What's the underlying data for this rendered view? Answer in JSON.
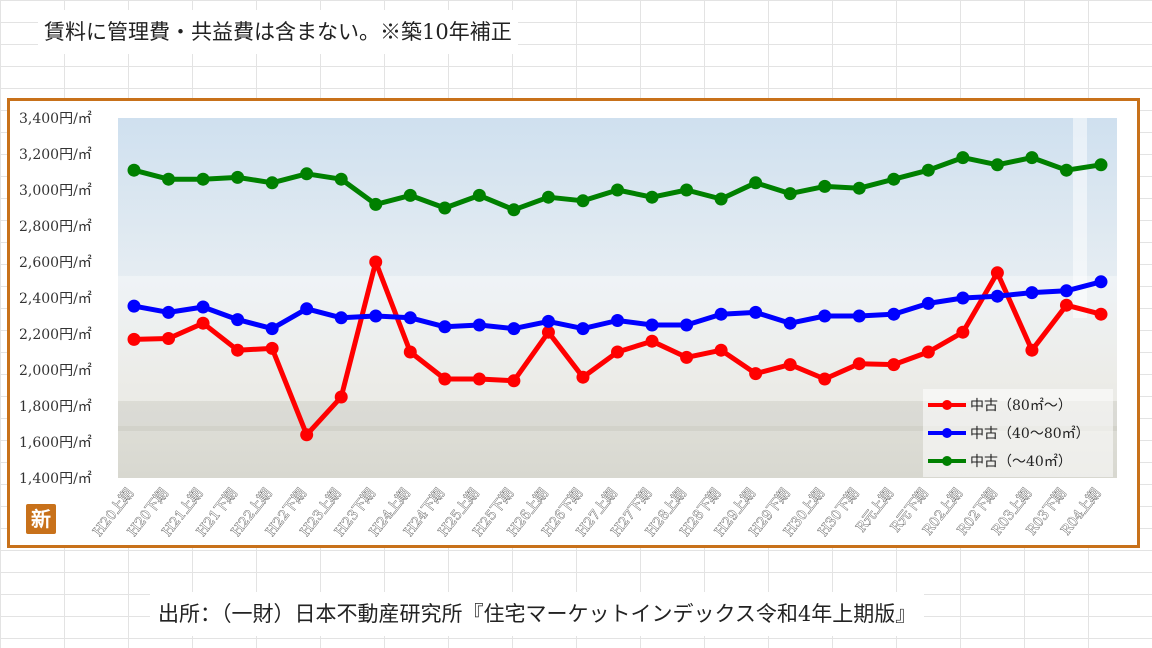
{
  "header": {
    "note": "賃料に管理費・共益費は含まない。※築10年補正"
  },
  "footer": {
    "source": "出所：（一財）日本不動産研究所『住宅マーケットインデックス令和4年上期版』"
  },
  "logo": {
    "label": "新"
  },
  "colors": {
    "frame": "#c8711a",
    "series_red": "#ff0000",
    "series_blue": "#0000ff",
    "series_green": "#008000"
  },
  "chart_data": {
    "type": "line",
    "title": "",
    "xlabel": "",
    "ylabel": "",
    "ylim": [
      1400,
      3400
    ],
    "yticks": [
      "1,400円/㎡",
      "1,600円/㎡",
      "1,800円/㎡",
      "2,000円/㎡",
      "2,200円/㎡",
      "2,400円/㎡",
      "2,600円/㎡",
      "2,800円/㎡",
      "3,000円/㎡",
      "3,200円/㎡",
      "3,400円/㎡"
    ],
    "categories": [
      "H20上期",
      "H20下期",
      "H21上期",
      "H21下期",
      "H22上期",
      "H22下期",
      "H23上期",
      "H23下期",
      "H24上期",
      "H24下期",
      "H25上期",
      "H25下期",
      "H26上期",
      "H26下期",
      "H27上期",
      "H27下期",
      "H28上期",
      "H28下期",
      "H29上期",
      "H29下期",
      "H30上期",
      "H30下期",
      "R元上期",
      "R元下期",
      "R02上期",
      "R02下期",
      "R03上期",
      "R03下期",
      "R04上期"
    ],
    "legend_position": "bottom-right",
    "series": [
      {
        "name": "中古（80㎡～）",
        "color": "#ff0000",
        "values": [
          2170,
          2175,
          2260,
          2110,
          2120,
          1640,
          1850,
          2600,
          2100,
          1950,
          1950,
          1940,
          2210,
          1960,
          2100,
          2160,
          2070,
          2110,
          1980,
          2030,
          1950,
          2035,
          2030,
          2100,
          2210,
          2540,
          2110,
          2360,
          2310
        ]
      },
      {
        "name": "中古（40～80㎡）",
        "color": "#0000ff",
        "values": [
          2355,
          2320,
          2350,
          2280,
          2230,
          2340,
          2290,
          2300,
          2290,
          2240,
          2250,
          2230,
          2270,
          2230,
          2275,
          2250,
          2250,
          2310,
          2320,
          2260,
          2300,
          2300,
          2310,
          2370,
          2400,
          2410,
          2430,
          2440,
          2490
        ]
      },
      {
        "name": "中古（～40㎡）",
        "color": "#008000",
        "values": [
          3110,
          3060,
          3060,
          3070,
          3040,
          3090,
          3060,
          2920,
          2970,
          2900,
          2970,
          2890,
          2960,
          2940,
          3000,
          2960,
          3000,
          2950,
          3040,
          2980,
          3020,
          3010,
          3060,
          3110,
          3180,
          3140,
          3180,
          3110,
          3140
        ]
      }
    ]
  }
}
